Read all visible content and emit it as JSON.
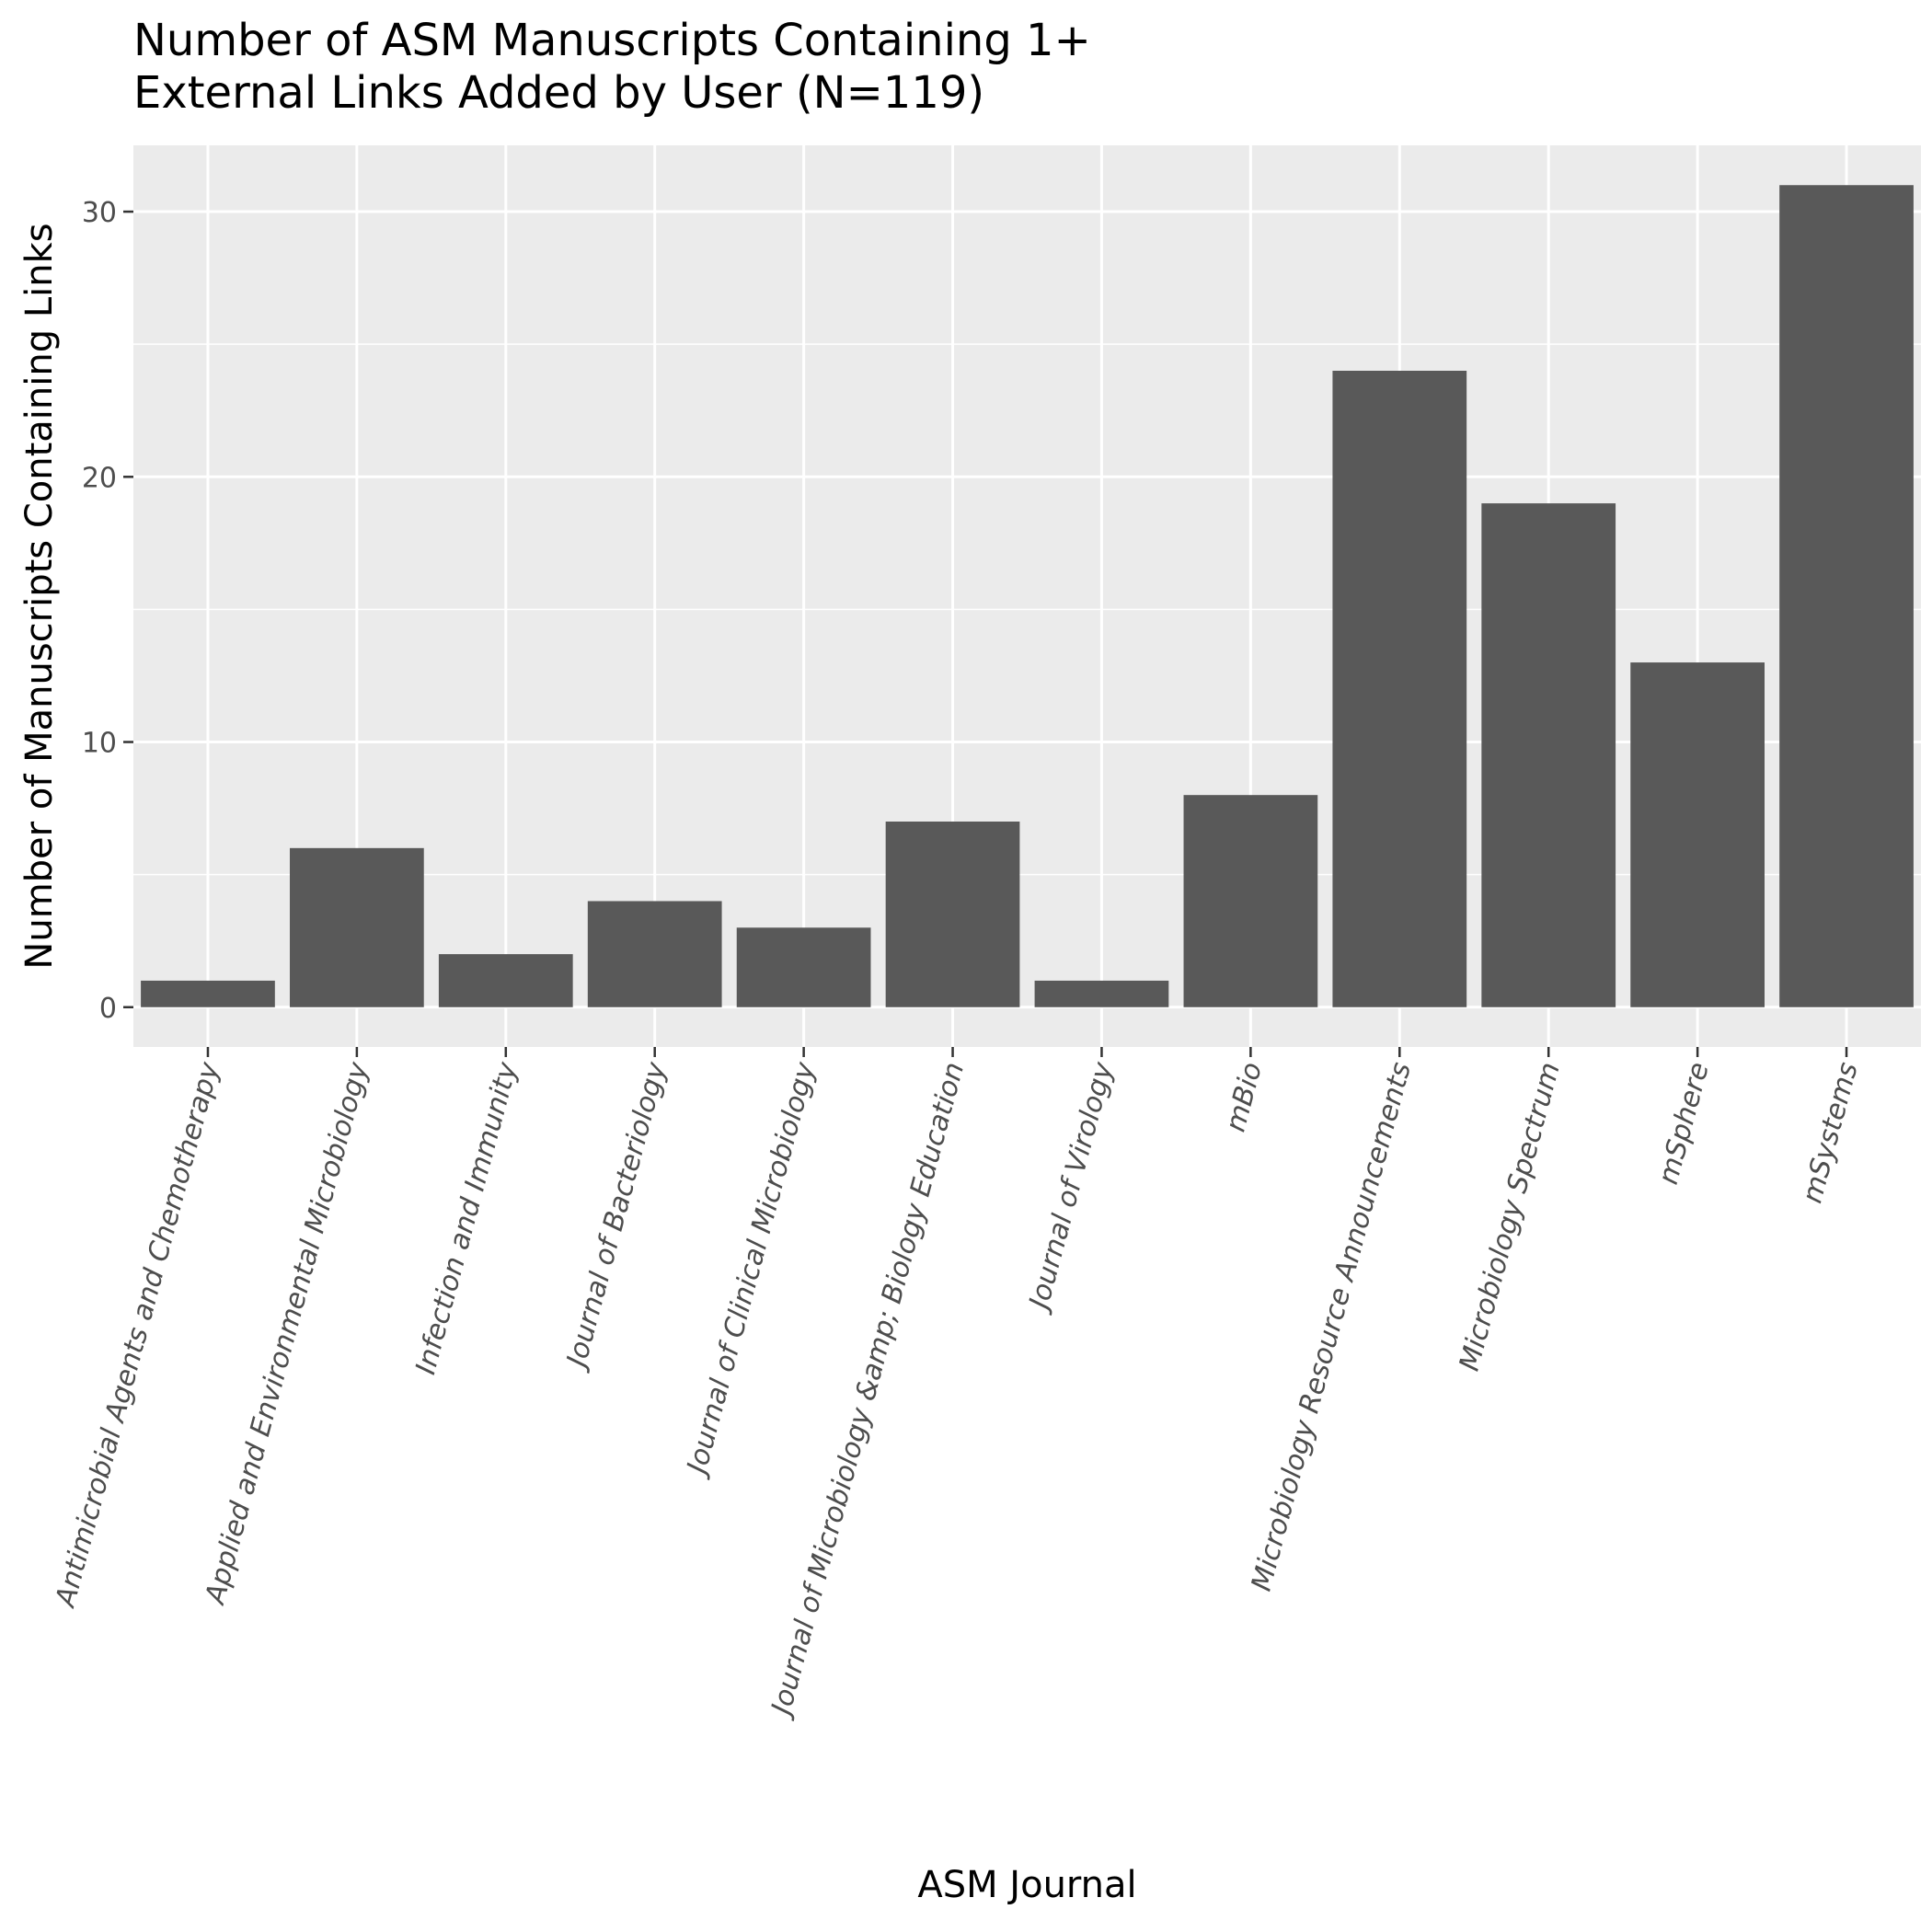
{
  "chart_data": {
    "type": "bar",
    "title": [
      "Number of ASM Manuscripts Containing 1+",
      "External Links Added by User (N=119)"
    ],
    "xlabel": "ASM Journal",
    "ylabel": "Number of Manuscripts Containing Links",
    "categories": [
      "Antimicrobial Agents and Chemotherapy",
      "Applied and Environmental Microbiology",
      "Infection and Immunity",
      "Journal of Bacteriology",
      "Journal of Clinical Microbiology",
      "Journal of Microbiology &amp; Biology Education",
      "Journal of Virology",
      "mBio",
      "Microbiology Resource Announcements",
      "Microbiology Spectrum",
      "mSphere",
      "mSystems"
    ],
    "values": [
      1,
      6,
      2,
      4,
      3,
      7,
      1,
      8,
      24,
      19,
      13,
      31
    ],
    "ylim": [
      -1.5,
      32.5
    ],
    "yticks": [
      0,
      10,
      20,
      30
    ],
    "grid": true,
    "colors": {
      "bar": "#595959",
      "panel": "#ebebeb",
      "grid": "#ffffff",
      "tick_text": "#4d4d4d",
      "tick_mark": "#333333"
    }
  }
}
